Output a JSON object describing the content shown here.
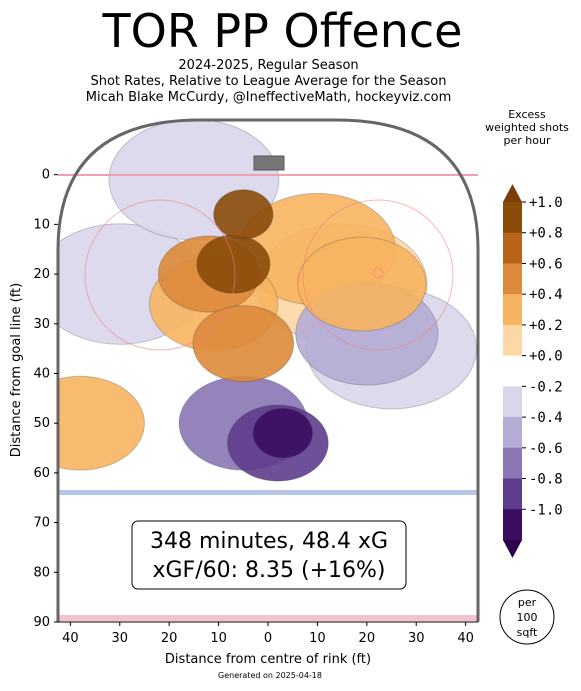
{
  "header": {
    "title": "TOR PP Offence",
    "subtitle_lines": [
      "2024-2025, Regular Season",
      "Shot Rates, Relative to League Average for the Season",
      "Micah Blake McCurdy, @IneffectiveMath, hockeyviz.com"
    ]
  },
  "colorbar": {
    "title_lines": [
      "Excess",
      "weighted shots",
      "per hour"
    ],
    "tick_labels": [
      "+1.0",
      "+0.8",
      "+0.6",
      "+0.4",
      "+0.2",
      "+0.0",
      "-0.2",
      "-0.4",
      "-0.6",
      "-0.8",
      "-1.0"
    ],
    "colors": [
      "#8a4a0a",
      "#b8651a",
      "#dd8a3a",
      "#f7b460",
      "#fcd8a6",
      "#ffffff",
      "#d8d6ea",
      "#b4acd4",
      "#8a77b4",
      "#5e3d8e",
      "#3a0d60"
    ],
    "extend_top_color": "#7a3e08",
    "extend_bottom_color": "#2d004b"
  },
  "annotation": {
    "line1": "348 minutes, 48.4 xG",
    "line2": "xGF/60: 8.35 (+16%)"
  },
  "scale_badge": [
    "per",
    "100",
    "sqft"
  ],
  "footer": "Generated on 2025-04-18",
  "chart_data": {
    "type": "heatmap",
    "title": "TOR PP Offence",
    "xlabel": "Distance from centre of rink (ft)",
    "ylabel": "Distance from goal line (ft)",
    "xlim": [
      -42.5,
      42.5
    ],
    "ylim": [
      90,
      -11
    ],
    "x_ticks": [
      -40,
      -30,
      -20,
      -10,
      0,
      10,
      20,
      30,
      40
    ],
    "x_tick_labels": [
      "40",
      "30",
      "20",
      "10",
      "0",
      "10",
      "20",
      "30",
      "40"
    ],
    "y_ticks": [
      0,
      10,
      20,
      30,
      40,
      50,
      60,
      70,
      80,
      90
    ],
    "y_tick_labels": [
      "0",
      "10",
      "20",
      "30",
      "40",
      "50",
      "60",
      "70",
      "80",
      "90"
    ],
    "color_range": [
      -1.0,
      1.0
    ],
    "regions": [
      {
        "x": -5,
        "y": 8,
        "value": 1.0
      },
      {
        "x": -7,
        "y": 18,
        "value": 0.9
      },
      {
        "x": -12,
        "y": 20,
        "value": 0.7
      },
      {
        "x": -5,
        "y": 34,
        "value": 0.7
      },
      {
        "x": -11,
        "y": 26,
        "value": 0.5
      },
      {
        "x": 19,
        "y": 22,
        "value": 0.5
      },
      {
        "x": -38,
        "y": 50,
        "value": 0.5
      },
      {
        "x": 10,
        "y": 15,
        "value": 0.3
      },
      {
        "x": 15,
        "y": 22,
        "value": 0.2
      },
      {
        "x": 3,
        "y": 52,
        "value": -1.0
      },
      {
        "x": 2,
        "y": 54,
        "value": -0.7
      },
      {
        "x": -5,
        "y": 50,
        "value": -0.5
      },
      {
        "x": 20,
        "y": 32,
        "value": -0.4
      },
      {
        "x": 25,
        "y": 35,
        "value": -0.2
      },
      {
        "x": -30,
        "y": 22,
        "value": -0.2
      },
      {
        "x": -15,
        "y": 1,
        "value": -0.2
      }
    ]
  }
}
